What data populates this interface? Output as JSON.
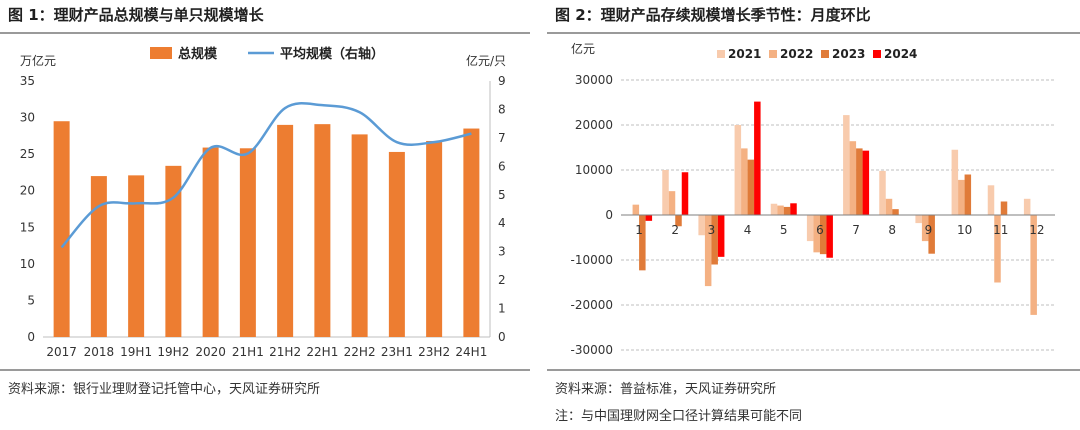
{
  "left": {
    "title": "图 1：理财产品总规模与单只规模增长",
    "source": "资料来源：银行业理财登记托管中心，天风证券研究所",
    "chart_data": {
      "type": "bar+line",
      "categories": [
        "2017",
        "2018",
        "19H1",
        "19H2",
        "2020",
        "21H1",
        "21H2",
        "22H1",
        "22H2",
        "23H1",
        "23H2",
        "24H1"
      ],
      "series": [
        {
          "name": "总规模",
          "type": "bar",
          "axis": "left",
          "color": "#ED7D31",
          "values": [
            29.5,
            22.0,
            22.1,
            23.4,
            25.9,
            25.8,
            29.0,
            29.1,
            27.7,
            25.3,
            26.8,
            28.5
          ]
        },
        {
          "name": "平均规模（右轴）",
          "type": "line",
          "axis": "right",
          "color": "#5B9BD5",
          "values": [
            3.15,
            4.6,
            4.7,
            4.9,
            6.65,
            6.45,
            8.05,
            8.15,
            7.9,
            6.85,
            6.85,
            7.15
          ]
        }
      ],
      "ylabel_left": "万亿元",
      "ylabel_right": "亿元/只",
      "ylim_left": [
        0,
        35
      ],
      "yticks_left": [
        0,
        5,
        10,
        15,
        20,
        25,
        30,
        35
      ],
      "ylim_right": [
        0,
        9
      ],
      "yticks_right": [
        0,
        1,
        2,
        3,
        4,
        5,
        6,
        7,
        8,
        9
      ],
      "grid": false,
      "legend_position": "top"
    }
  },
  "right": {
    "title": "图 2：理财产品存续规模增长季节性：月度环比",
    "source": "资料来源：普益标准，天风证券研究所",
    "note": "注：与中国理财网全口径计算结果可能不同",
    "chart_data": {
      "type": "bar",
      "categories": [
        "1",
        "2",
        "3",
        "4",
        "5",
        "6",
        "7",
        "8",
        "9",
        "10",
        "11",
        "12"
      ],
      "series": [
        {
          "name": "2021",
          "color": "#F8CBAD",
          "values": [
            null,
            10000,
            -4500,
            20000,
            2500,
            -5800,
            22200,
            9800,
            -1800,
            14500,
            6600,
            3600
          ]
        },
        {
          "name": "2022",
          "color": "#F4B183",
          "values": [
            2300,
            5300,
            -15800,
            14800,
            2100,
            -8300,
            16400,
            3600,
            -5800,
            7800,
            -15000,
            -22200
          ]
        },
        {
          "name": "2023",
          "color": "#E07B39",
          "values": [
            -12300,
            -2500,
            -11000,
            12300,
            1800,
            -8700,
            14800,
            1300,
            -8600,
            9000,
            3000,
            null
          ]
        },
        {
          "name": "2024",
          "color": "#FF0000",
          "values": [
            -1300,
            9500,
            -9300,
            25200,
            2600,
            -9500,
            14300,
            null,
            null,
            null,
            null,
            null
          ]
        }
      ],
      "ylabel": "亿元",
      "ylim": [
        -30000,
        30000
      ],
      "yticks": [
        -30000,
        -20000,
        -10000,
        0,
        10000,
        20000,
        30000
      ],
      "grid": true,
      "legend_position": "top"
    }
  }
}
